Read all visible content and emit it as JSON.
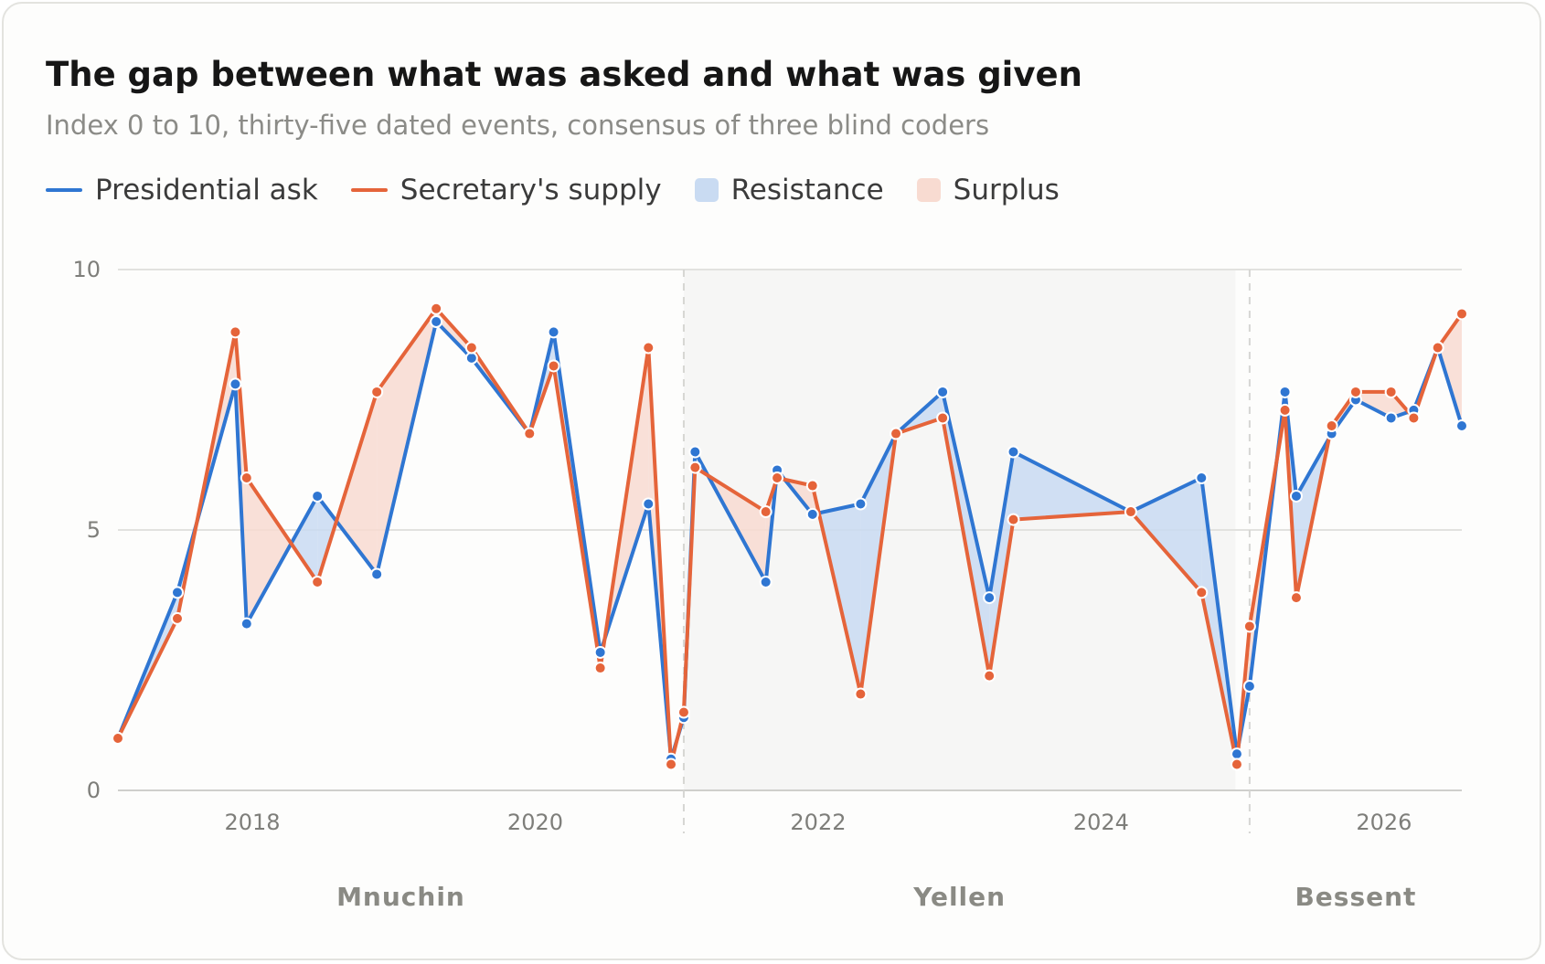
{
  "chart_data": {
    "type": "line",
    "title": "The gap between what was asked and what was given",
    "subtitle": "Index 0 to 10, thirty-five dated events, consensus of three blind coders",
    "ylim": [
      0,
      10
    ],
    "yticks": [
      0,
      5,
      10
    ],
    "xlim": [
      2017.05,
      2026.55
    ],
    "xticks": [
      2018,
      2020,
      2022,
      2024,
      2026
    ],
    "grid": "horizontal",
    "legend": "top-left",
    "legend_entries": [
      {
        "label": "Presidential ask",
        "kind": "line",
        "color": "#2f76d2"
      },
      {
        "label": "Secretary's supply",
        "kind": "line",
        "color": "#e5643a"
      },
      {
        "label": "Resistance",
        "kind": "area",
        "color": "#c9dbf2"
      },
      {
        "label": "Surplus",
        "kind": "area",
        "color": "#f8dbd1"
      }
    ],
    "eras": [
      {
        "name": "Mnuchin",
        "start": 2017.05,
        "end": 2021.05,
        "shaded": false
      },
      {
        "name": "Yellen",
        "start": 2021.05,
        "end": 2024.95,
        "shaded": true
      },
      {
        "name": "Bessent",
        "start": 2025.05,
        "end": 2026.55,
        "shaded": false
      }
    ],
    "dividers": [
      2021.05,
      2025.05
    ],
    "x": [
      2017.05,
      2017.47,
      2017.88,
      2017.96,
      2018.46,
      2018.88,
      2019.3,
      2019.55,
      2019.96,
      2020.13,
      2020.46,
      2020.8,
      2020.96,
      2021.05,
      2021.13,
      2021.63,
      2021.71,
      2021.96,
      2022.3,
      2022.55,
      2022.88,
      2023.21,
      2023.38,
      2024.21,
      2024.71,
      2024.96,
      2025.05,
      2025.3,
      2025.38,
      2025.63,
      2025.8,
      2026.05,
      2026.21,
      2026.38,
      2026.55
    ],
    "series": [
      {
        "name": "Presidential ask",
        "color": "#2f76d2",
        "values": [
          1.0,
          3.8,
          7.8,
          3.2,
          5.65,
          4.15,
          9.0,
          8.3,
          6.85,
          8.8,
          2.65,
          5.5,
          0.6,
          1.4,
          6.5,
          4.0,
          6.15,
          5.3,
          5.5,
          6.85,
          7.65,
          3.7,
          6.5,
          5.35,
          6.0,
          0.7,
          2.0,
          7.65,
          5.65,
          6.85,
          7.5,
          7.15,
          7.3,
          8.5,
          7.0
        ]
      },
      {
        "name": "Secretary's supply",
        "color": "#e5643a",
        "values": [
          1.0,
          3.3,
          8.8,
          6.0,
          4.0,
          7.65,
          9.25,
          8.5,
          6.85,
          8.15,
          2.35,
          8.5,
          0.5,
          1.5,
          6.2,
          5.35,
          6.0,
          5.85,
          1.85,
          6.85,
          7.15,
          2.2,
          5.2,
          5.35,
          3.8,
          0.5,
          3.15,
          7.3,
          3.7,
          7.0,
          7.65,
          7.65,
          7.15,
          8.5,
          9.15
        ]
      }
    ]
  }
}
